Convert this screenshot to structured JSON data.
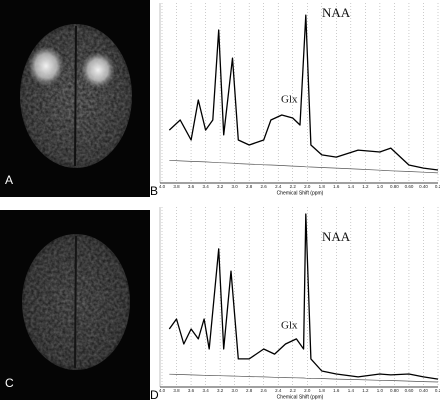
{
  "figure_panels": [
    {
      "label": "A"
    },
    {
      "label": "C"
    }
  ],
  "chart_data": [
    {
      "type": "line",
      "panel_label": "B",
      "xlabel": "Chemical Shift (ppm)",
      "annotations": [
        "NAA",
        "Glx"
      ],
      "x": [
        3.9,
        3.75,
        3.6,
        3.5,
        3.4,
        3.3,
        3.22,
        3.15,
        3.03,
        2.95,
        2.8,
        2.6,
        2.5,
        2.35,
        2.2,
        2.1,
        2.02,
        1.95,
        1.8,
        1.6,
        1.3,
        1.0,
        0.85,
        0.6,
        0.4,
        0.2
      ],
      "series": [
        {
          "color": "#000000",
          "values": [
            29.4,
            35,
            23.9,
            46.1,
            29.4,
            35,
            85,
            26.7,
            69.4,
            23.9,
            21.1,
            23.9,
            35,
            37.8,
            36.1,
            32.2,
            93.3,
            21.1,
            15.6,
            14.4,
            18.3,
            17.2,
            19.4,
            10,
            8.3,
            7.2
          ]
        },
        {
          "color": "#555555",
          "values": [
            12.6,
            12.3,
            12.0,
            11.9,
            11.7,
            11.5,
            11.3,
            11.2,
            11.0,
            10.8,
            10.5,
            10.1,
            10.0,
            9.7,
            9.4,
            9.2,
            9.0,
            8.9,
            8.6,
            8.3,
            7.7,
            7.1,
            6.8,
            6.4,
            6.0,
            5.6
          ]
        }
      ],
      "xlim": [
        4.0,
        0.2
      ],
      "ylim": [
        0,
        100
      ],
      "grid": true,
      "xticks": [
        {
          "value": 4.0,
          "label": "4.0"
        },
        3.8,
        3.6,
        3.4,
        3.2,
        {
          "value": 3.0,
          "label": "3.0"
        },
        2.8,
        2.6,
        2.4,
        2.2,
        {
          "value": 2.0,
          "label": "2.0"
        },
        1.8,
        1.6,
        1.4,
        1.2,
        {
          "value": 1.0,
          "label": "1.0"
        },
        {
          "value": 0.8,
          "label": "0.80"
        },
        {
          "value": 0.6,
          "label": "0.60"
        },
        {
          "value": 0.4,
          "label": "0.40"
        },
        0.2
      ]
    },
    {
      "type": "line",
      "panel_label": "D",
      "xlabel": "Chemical Shift (ppm)",
      "annotations": [
        "NAA",
        "Glx"
      ],
      "x": [
        3.9,
        3.8,
        3.7,
        3.6,
        3.5,
        3.42,
        3.35,
        3.22,
        3.15,
        3.05,
        2.95,
        2.8,
        2.6,
        2.45,
        2.3,
        2.15,
        2.05,
        2.02,
        1.95,
        1.8,
        1.6,
        1.3,
        1.0,
        0.85,
        0.6,
        0.4,
        0.2
      ],
      "series": [
        {
          "color": "#000000",
          "values": [
            32.2,
            37.8,
            23.9,
            32.2,
            26.7,
            37.8,
            21.1,
            76.7,
            21.1,
            64.4,
            15.6,
            15.6,
            21.1,
            18.3,
            23.9,
            26.7,
            21.1,
            96.1,
            15.6,
            8.9,
            7.2,
            5.6,
            7.2,
            6.7,
            7.2,
            5.6,
            4.4
          ]
        },
        {
          "color": "#555555",
          "values": [
            7.1,
            7.0,
            6.9,
            6.7,
            6.6,
            6.5,
            6.4,
            6.3,
            6.2,
            6.1,
            6.0,
            5.8,
            5.6,
            5.4,
            5.2,
            5.1,
            5.0,
            4.9,
            4.8,
            4.7,
            4.4,
            4.1,
            3.7,
            3.6,
            3.3,
            3.0,
            2.8
          ]
        }
      ],
      "xlim": [
        4.0,
        0.2
      ],
      "ylim": [
        0,
        100
      ],
      "grid": true,
      "xticks": [
        {
          "value": 4.0,
          "label": "4.0"
        },
        3.8,
        3.6,
        3.4,
        3.2,
        {
          "value": 3.0,
          "label": "3.0"
        },
        2.8,
        2.6,
        2.4,
        2.2,
        {
          "value": 2.0,
          "label": "2.0"
        },
        1.8,
        1.6,
        1.4,
        1.2,
        {
          "value": 1.0,
          "label": "1.0"
        },
        {
          "value": 0.8,
          "label": "0.80"
        },
        {
          "value": 0.6,
          "label": "0.60"
        },
        {
          "value": 0.4,
          "label": "0.40"
        },
        0.2
      ]
    }
  ]
}
